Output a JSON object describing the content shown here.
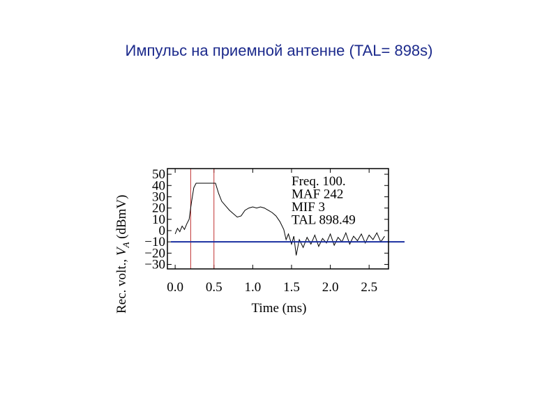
{
  "chart_data": {
    "type": "line",
    "title": "Импульс на приемной антенне (TAL= 898s)",
    "xlabel": "Time (ms)",
    "ylabel": [
      "Rec. volt., ",
      "V",
      "A",
      " (dBmV)"
    ],
    "annotations": [
      "Freq. 100.",
      "MAF 242",
      "MIF 3",
      "TAL 898.49"
    ],
    "x": [
      0.0,
      0.03,
      0.06,
      0.09,
      0.12,
      0.15,
      0.18,
      0.21,
      0.24,
      0.27,
      0.35,
      0.45,
      0.52,
      0.56,
      0.6,
      0.65,
      0.7,
      0.75,
      0.8,
      0.85,
      0.9,
      0.95,
      1.0,
      1.05,
      1.1,
      1.15,
      1.2,
      1.25,
      1.3,
      1.35,
      1.4,
      1.43,
      1.46,
      1.5,
      1.53,
      1.56,
      1.6,
      1.65,
      1.7,
      1.75,
      1.8,
      1.85,
      1.9,
      1.95,
      2.0,
      2.05,
      2.1,
      2.15,
      2.2,
      2.25,
      2.3,
      2.35,
      2.4,
      2.45,
      2.5,
      2.55,
      2.6,
      2.65,
      2.7
    ],
    "series": [
      {
        "color": "#000000",
        "values": [
          -3,
          2,
          -1,
          4,
          1,
          6,
          10,
          25,
          38,
          42,
          42,
          42,
          42,
          33,
          26,
          22,
          18,
          15,
          12,
          13,
          18,
          20,
          21,
          20,
          21,
          20,
          18,
          16,
          13,
          8,
          1,
          -8,
          -3,
          -12,
          -5,
          -22,
          -8,
          -15,
          -6,
          -12,
          -4,
          -14,
          -7,
          -11,
          -3,
          -13,
          -6,
          -10,
          -2,
          -12,
          -5,
          -9,
          -3,
          -11,
          -4,
          -8,
          -2,
          -10,
          -5
        ]
      }
    ],
    "hlines": [
      {
        "value": -10,
        "color": "#1a2fa0"
      }
    ],
    "vlines": [
      {
        "value": 0.2,
        "color": "#c03030"
      },
      {
        "value": 0.5,
        "color": "#c03030"
      }
    ],
    "xlim": [
      -0.1,
      2.75
    ],
    "ylim": [
      -34,
      55
    ],
    "xticks": [
      {
        "value": 0,
        "label": "0.0"
      },
      0.5,
      {
        "value": 1,
        "label": "1.0"
      },
      1.5,
      {
        "value": 2,
        "label": "2.0"
      },
      2.5
    ],
    "yticks": [
      50,
      40,
      30,
      20,
      10,
      0,
      {
        "value": -10,
        "label": "−10"
      },
      {
        "value": -20,
        "label": "−20"
      },
      {
        "value": -30,
        "label": "−30"
      }
    ]
  }
}
